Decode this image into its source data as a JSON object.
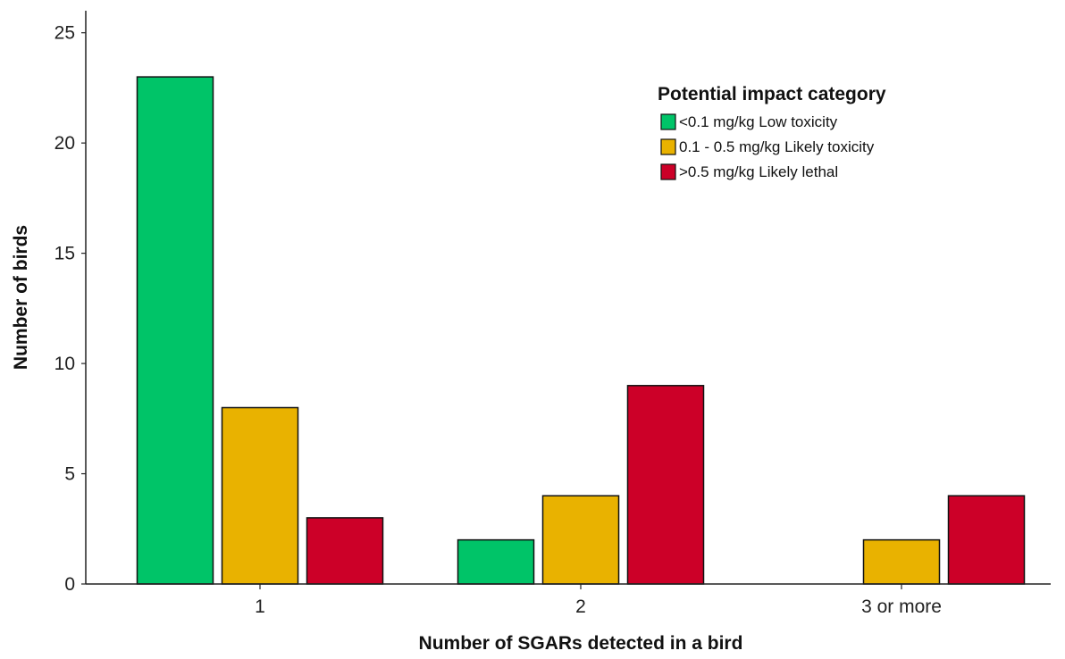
{
  "chart_data": {
    "type": "bar",
    "categories": [
      "1",
      "2",
      "3 or more"
    ],
    "series": [
      {
        "name": "<0.1 mg/kg Low toxicity",
        "values": [
          23,
          2,
          0
        ],
        "color": "#00c468"
      },
      {
        "name": "0.1 - 0.5 mg/kg Likely toxicity",
        "values": [
          8,
          4,
          2
        ],
        "color": "#e9b200"
      },
      {
        "name": ">0.5 mg/kg Likely lethal",
        "values": [
          3,
          9,
          4
        ],
        "color": "#cc0028"
      }
    ],
    "xlabel": "Number of SGARs detected in a bird",
    "ylabel": "Number of birds",
    "ylim": [
      0,
      26
    ],
    "yticks": [
      0,
      5,
      10,
      15,
      20,
      25
    ],
    "legend": {
      "title": "Potential impact category",
      "placement": "top-right"
    },
    "grid": false
  }
}
